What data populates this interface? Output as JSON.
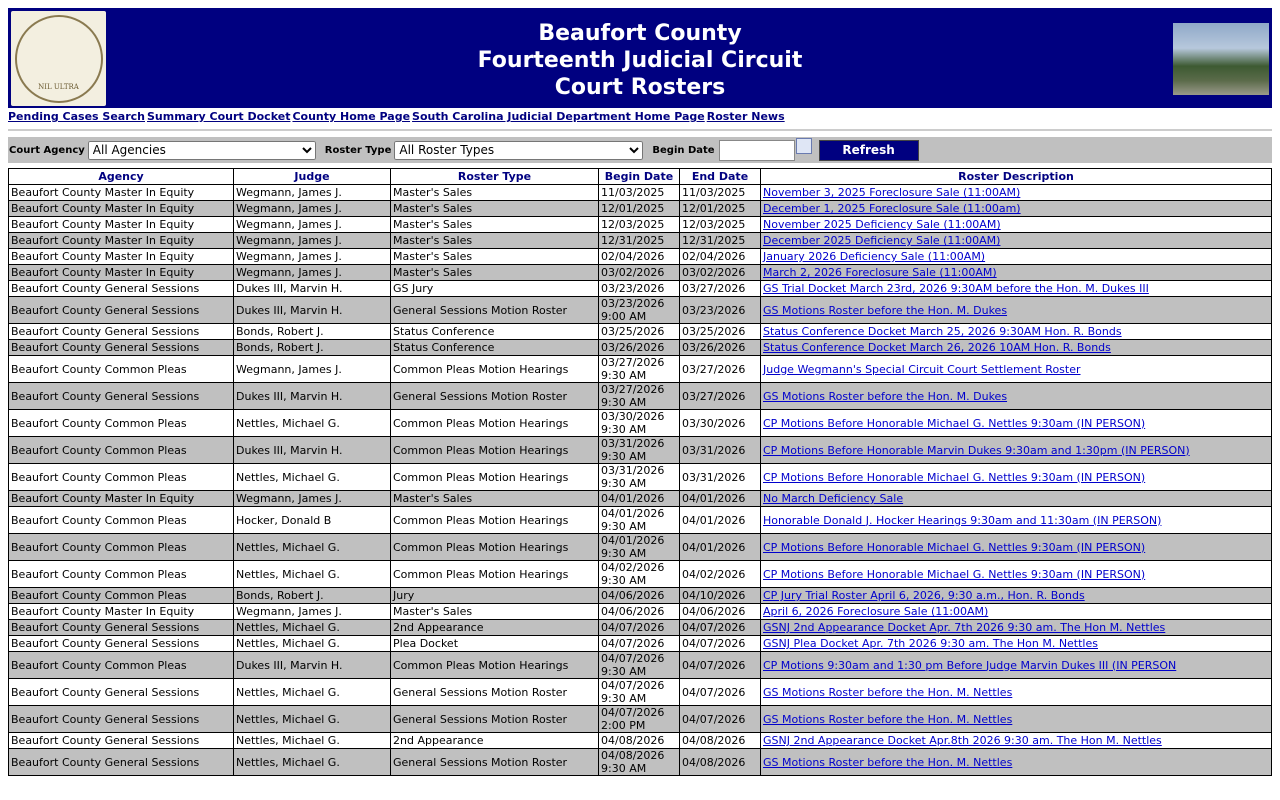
{
  "header": {
    "title_lines": [
      "Beaufort County",
      "Fourteenth Judicial Circuit",
      "Court Rosters"
    ],
    "seal_text": "SUPREME COURT OF SOUTH CAROLINA NIL ULTRA"
  },
  "nav": [
    "Pending Cases Search",
    "Summary Court Docket",
    "County Home Page",
    "South Carolina Judicial Department Home Page",
    "Roster News"
  ],
  "filters": {
    "agency_label": "Court Agency",
    "agency_value": "All Agencies",
    "type_label": "Roster Type",
    "type_value": "All Roster Types",
    "begin_label": "Begin Date",
    "begin_value": "",
    "refresh": "Refresh"
  },
  "columns": [
    "Agency",
    "Judge",
    "Roster Type",
    "Begin Date",
    "End Date",
    "Roster Description"
  ],
  "rows": [
    [
      "Beaufort County Master In Equity",
      "Wegmann, James J.",
      "Master's Sales",
      "11/03/2025",
      "11/03/2025",
      "November 3, 2025 Foreclosure Sale (11:00AM)"
    ],
    [
      "Beaufort County Master In Equity",
      "Wegmann, James J.",
      "Master's Sales",
      "12/01/2025",
      "12/01/2025",
      "December 1, 2025 Foreclosure Sale (11:00am)"
    ],
    [
      "Beaufort County Master In Equity",
      "Wegmann, James J.",
      "Master's Sales",
      "12/03/2025",
      "12/03/2025",
      "November 2025 Deficiency Sale (11:00AM)"
    ],
    [
      "Beaufort County Master In Equity",
      "Wegmann, James J.",
      "Master's Sales",
      "12/31/2025",
      "12/31/2025",
      "December 2025 Deficiency Sale (11:00AM)"
    ],
    [
      "Beaufort County Master In Equity",
      "Wegmann, James J.",
      "Master's Sales",
      "02/04/2026",
      "02/04/2026",
      "January 2026 Deficiency Sale (11:00AM)"
    ],
    [
      "Beaufort County Master In Equity",
      "Wegmann, James J.",
      "Master's Sales",
      "03/02/2026",
      "03/02/2026",
      "March 2, 2026 Foreclosure Sale (11:00AM)"
    ],
    [
      "Beaufort County General Sessions",
      "Dukes III, Marvin H.",
      "GS Jury",
      "03/23/2026",
      "03/27/2026",
      "GS Trial Docket March 23rd, 2026 9:30AM before the Hon. M. Dukes III"
    ],
    [
      "Beaufort County General Sessions",
      "Dukes III, Marvin H.",
      "General Sessions Motion Roster",
      "03/23/2026 9:00 AM",
      "03/23/2026",
      "GS Motions Roster before the Hon. M. Dukes"
    ],
    [
      "Beaufort County General Sessions",
      "Bonds, Robert J.",
      "Status Conference",
      "03/25/2026",
      "03/25/2026",
      "Status Conference Docket March 25, 2026 9:30AM Hon. R. Bonds"
    ],
    [
      "Beaufort County General Sessions",
      "Bonds, Robert J.",
      "Status Conference",
      "03/26/2026",
      "03/26/2026",
      "Status Conference Docket March 26, 2026 10AM Hon. R. Bonds"
    ],
    [
      "Beaufort County Common Pleas",
      "Wegmann, James J.",
      "Common Pleas Motion Hearings",
      "03/27/2026 9:30 AM",
      "03/27/2026",
      "Judge Wegmann's Special Circuit Court Settlement Roster"
    ],
    [
      "Beaufort County General Sessions",
      "Dukes III, Marvin H.",
      "General Sessions Motion Roster",
      "03/27/2026 9:30 AM",
      "03/27/2026",
      "GS Motions Roster before the Hon. M. Dukes"
    ],
    [
      "Beaufort County Common Pleas",
      "Nettles, Michael G.",
      "Common Pleas Motion Hearings",
      "03/30/2026 9:30 AM",
      "03/30/2026",
      "CP Motions Before Honorable Michael G. Nettles 9:30am (IN PERSON)"
    ],
    [
      "Beaufort County Common Pleas",
      "Dukes III, Marvin H.",
      "Common Pleas Motion Hearings",
      "03/31/2026 9:30 AM",
      "03/31/2026",
      "CP Motions Before Honorable Marvin Dukes 9:30am and 1:30pm (IN PERSON)"
    ],
    [
      "Beaufort County Common Pleas",
      "Nettles, Michael G.",
      "Common Pleas Motion Hearings",
      "03/31/2026 9:30 AM",
      "03/31/2026",
      "CP Motions Before Honorable Michael G. Nettles 9:30am (IN PERSON)"
    ],
    [
      "Beaufort County Master In Equity",
      "Wegmann, James J.",
      "Master's Sales",
      "04/01/2026",
      "04/01/2026",
      "No March Deficiency Sale"
    ],
    [
      "Beaufort County Common Pleas",
      "Hocker, Donald B",
      "Common Pleas Motion Hearings",
      "04/01/2026 9:30 AM",
      "04/01/2026",
      "Honorable Donald J. Hocker Hearings 9:30am and 11:30am (IN PERSON)"
    ],
    [
      "Beaufort County Common Pleas",
      "Nettles, Michael G.",
      "Common Pleas Motion Hearings",
      "04/01/2026 9:30 AM",
      "04/01/2026",
      "CP Motions Before Honorable Michael G. Nettles 9:30am (IN PERSON)"
    ],
    [
      "Beaufort County Common Pleas",
      "Nettles, Michael G.",
      "Common Pleas Motion Hearings",
      "04/02/2026 9:30 AM",
      "04/02/2026",
      "CP Motions Before Honorable Michael G. Nettles 9:30am (IN PERSON)"
    ],
    [
      "Beaufort County Common Pleas",
      "Bonds, Robert J.",
      "Jury",
      "04/06/2026",
      "04/10/2026",
      "CP Jury Trial Roster April 6, 2026, 9:30 a.m., Hon. R. Bonds"
    ],
    [
      "Beaufort County Master In Equity",
      "Wegmann, James J.",
      "Master's Sales",
      "04/06/2026",
      "04/06/2026",
      "April 6, 2026 Foreclosure Sale (11:00AM)"
    ],
    [
      "Beaufort County General Sessions",
      "Nettles, Michael G.",
      "2nd Appearance",
      "04/07/2026",
      "04/07/2026",
      "GSNJ 2nd Appearance Docket Apr. 7th 2026 9:30 am. The Hon M. Nettles"
    ],
    [
      "Beaufort County General Sessions",
      "Nettles, Michael G.",
      "Plea Docket",
      "04/07/2026",
      "04/07/2026",
      "GSNJ Plea Docket Apr. 7th 2026 9:30 am. The Hon M. Nettles"
    ],
    [
      "Beaufort County Common Pleas",
      "Dukes III, Marvin H.",
      "Common Pleas Motion Hearings",
      "04/07/2026 9:30 AM",
      "04/07/2026",
      "CP Motions 9:30am and 1:30 pm Before Judge Marvin Dukes III (IN PERSON"
    ],
    [
      "Beaufort County General Sessions",
      "Nettles, Michael G.",
      "General Sessions Motion Roster",
      "04/07/2026 9:30 AM",
      "04/07/2026",
      "GS Motions Roster before the Hon. M. Nettles"
    ],
    [
      "Beaufort County General Sessions",
      "Nettles, Michael G.",
      "General Sessions Motion Roster",
      "04/07/2026 2:00 PM",
      "04/07/2026",
      "GS Motions Roster before the Hon. M. Nettles"
    ],
    [
      "Beaufort County General Sessions",
      "Nettles, Michael G.",
      "2nd Appearance",
      "04/08/2026",
      "04/08/2026",
      "GSNJ 2nd Appearance Docket Apr.8th 2026 9:30 am. The Hon M. Nettles"
    ],
    [
      "Beaufort County General Sessions",
      "Nettles, Michael G.",
      "General Sessions Motion Roster",
      "04/08/2026 9:30 AM",
      "04/08/2026",
      "GS Motions Roster before the Hon. M. Nettles"
    ]
  ]
}
